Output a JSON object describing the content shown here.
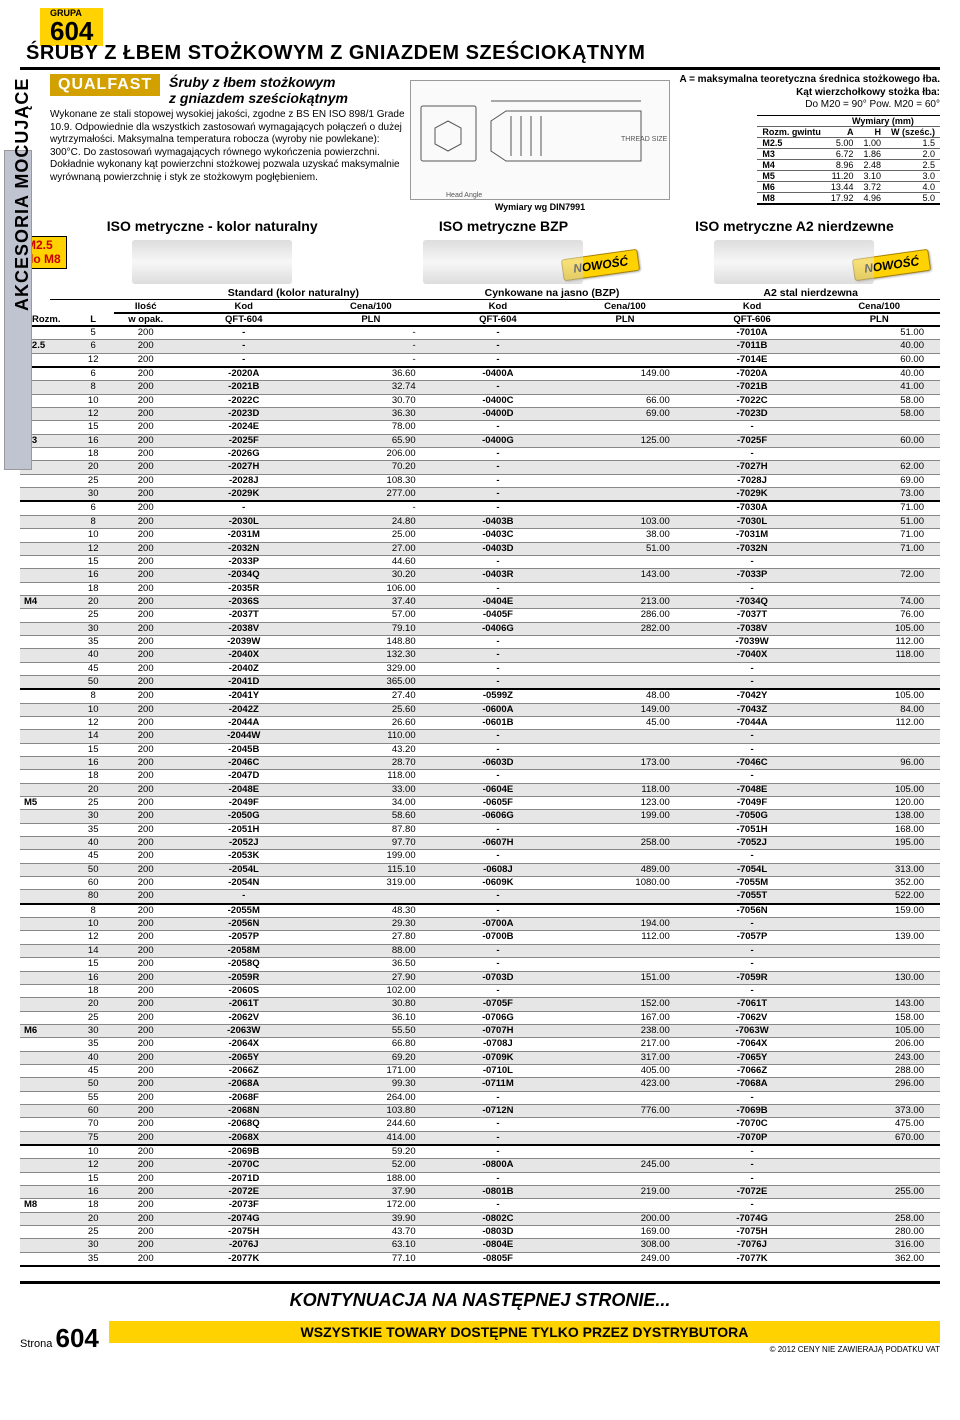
{
  "sidebar": "AKCESORIA MOCUJĄCE",
  "grupa_label": "GRUPA",
  "grupa_num": "604",
  "title": "ŚRUBY Z ŁBEM STOŻKOWYM Z GNIAZDEM SZEŚCIOKĄTNYM",
  "qualfast": "QUALFAST",
  "subtitle_l1": "Śruby z łbem stożkowym",
  "subtitle_l2": "z gniazdem sześciokątnym",
  "intro": "Wykonane ze stali stopowej wysokiej jakości, zgodne z BS EN ISO 898/1 Grade 10.9. Odpowiednie dla wszystkich zastosowań wymagających połączeń o dużej wytrzymałości. Maksymalna temperatura robocza (wyroby nie powlekane): 300°C. Do zastosowań wymagających równego wykończenia powierzchni. Dokładnie wykonany kąt powierzchni stożkowej pozwala uzyskać maksymalnie wyrównaną powierzchnię i styk ze stożkowym pogłębieniem.",
  "diagram_caption": "Wymiary wg DIN7991",
  "right_a": "A = maksymalna teoretyczna średnica stożkowego łba.",
  "right_b1": "Kąt wierzchołkowy stożka łba:",
  "right_b2": "Do M20 = 90° Pow. M20 = 60°",
  "dims": {
    "hdr": [
      "Rozm. gwintu",
      "A",
      "H",
      "W (sześc.)"
    ],
    "hdr_top": "Wymiary (mm)",
    "rows": [
      [
        "M2.5",
        "5.00",
        "1.00",
        "1.5"
      ],
      [
        "M3",
        "6.72",
        "1.86",
        "2.0"
      ],
      [
        "M4",
        "8.96",
        "2.48",
        "2.5"
      ],
      [
        "M5",
        "11.20",
        "3.10",
        "3.0"
      ],
      [
        "M6",
        "13.44",
        "3.72",
        "4.0"
      ],
      [
        "M8",
        "17.92",
        "4.96",
        "5.0"
      ]
    ]
  },
  "range_l1": "M2.5",
  "range_l2": "do M8",
  "col_titles": [
    "ISO metryczne - kolor naturalny",
    "ISO metryczne BZP",
    "ISO metryczne A2 nierdzewne"
  ],
  "nowosc": "NOWOŚĆ",
  "sub_heads": [
    "Standard (kolor naturalny)",
    "Cynkowane na jasno (BZP)",
    "A2 stal nierdzewna"
  ],
  "hdr": {
    "rozm": "Rozm.",
    "l": "L",
    "qty1": "Ilość",
    "qty2": "w opak.",
    "kod": "Kod",
    "qft604": "QFT-604",
    "qft606": "QFT-606",
    "cena1": "Cena/100",
    "cena2": "PLN"
  },
  "groups": [
    {
      "rozm": "M2.5",
      "rows": [
        {
          "l": "5",
          "q": "200",
          "c1": "-",
          "p1": "-",
          "c2": "-",
          "p2": "",
          "c3": "-7010A",
          "p3": "51.00"
        },
        {
          "l": "6",
          "q": "200",
          "c1": "-",
          "p1": "-",
          "c2": "-",
          "p2": "",
          "c3": "-7011B",
          "p3": "40.00"
        },
        {
          "l": "12",
          "q": "200",
          "c1": "-",
          "p1": "-",
          "c2": "-",
          "p2": "",
          "c3": "-7014E",
          "p3": "60.00"
        }
      ]
    },
    {
      "rozm": "M3",
      "rows": [
        {
          "l": "6",
          "q": "200",
          "c1": "-2020A",
          "p1": "36.60",
          "c2": "-0400A",
          "p2": "149.00",
          "c3": "-7020A",
          "p3": "40.00"
        },
        {
          "l": "8",
          "q": "200",
          "c1": "-2021B",
          "p1": "32.74",
          "c2": "-",
          "p2": "",
          "c3": "-7021B",
          "p3": "41.00"
        },
        {
          "l": "10",
          "q": "200",
          "c1": "-2022C",
          "p1": "30.70",
          "c2": "-0400C",
          "p2": "66.00",
          "c3": "-7022C",
          "p3": "58.00"
        },
        {
          "l": "12",
          "q": "200",
          "c1": "-2023D",
          "p1": "36.30",
          "c2": "-0400D",
          "p2": "69.00",
          "c3": "-7023D",
          "p3": "58.00"
        },
        {
          "l": "15",
          "q": "200",
          "c1": "-2024E",
          "p1": "78.00",
          "c2": "-",
          "p2": "",
          "c3": "-",
          "p3": ""
        },
        {
          "l": "16",
          "q": "200",
          "c1": "-2025F",
          "p1": "65.90",
          "c2": "-0400G",
          "p2": "125.00",
          "c3": "-7025F",
          "p3": "60.00"
        },
        {
          "l": "18",
          "q": "200",
          "c1": "-2026G",
          "p1": "206.00",
          "c2": "-",
          "p2": "",
          "c3": "-",
          "p3": ""
        },
        {
          "l": "20",
          "q": "200",
          "c1": "-2027H",
          "p1": "70.20",
          "c2": "-",
          "p2": "",
          "c3": "-7027H",
          "p3": "62.00"
        },
        {
          "l": "25",
          "q": "200",
          "c1": "-2028J",
          "p1": "108.30",
          "c2": "-",
          "p2": "",
          "c3": "-7028J",
          "p3": "69.00"
        },
        {
          "l": "30",
          "q": "200",
          "c1": "-2029K",
          "p1": "277.00",
          "c2": "-",
          "p2": "",
          "c3": "-7029K",
          "p3": "73.00"
        }
      ]
    },
    {
      "rozm": "M4",
      "rows": [
        {
          "l": "6",
          "q": "200",
          "c1": "-",
          "p1": "-",
          "c2": "-",
          "p2": "",
          "c3": "-7030A",
          "p3": "71.00"
        },
        {
          "l": "8",
          "q": "200",
          "c1": "-2030L",
          "p1": "24.80",
          "c2": "-0403B",
          "p2": "103.00",
          "c3": "-7030L",
          "p3": "51.00"
        },
        {
          "l": "10",
          "q": "200",
          "c1": "-2031M",
          "p1": "25.00",
          "c2": "-0403C",
          "p2": "38.00",
          "c3": "-7031M",
          "p3": "71.00"
        },
        {
          "l": "12",
          "q": "200",
          "c1": "-2032N",
          "p1": "27.00",
          "c2": "-0403D",
          "p2": "51.00",
          "c3": "-7032N",
          "p3": "71.00"
        },
        {
          "l": "15",
          "q": "200",
          "c1": "-2033P",
          "p1": "44.60",
          "c2": "-",
          "p2": "",
          "c3": "-",
          "p3": ""
        },
        {
          "l": "16",
          "q": "200",
          "c1": "-2034Q",
          "p1": "30.20",
          "c2": "-0403R",
          "p2": "143.00",
          "c3": "-7033P",
          "p3": "72.00"
        },
        {
          "l": "18",
          "q": "200",
          "c1": "-2035R",
          "p1": "106.00",
          "c2": "-",
          "p2": "",
          "c3": "-",
          "p3": ""
        },
        {
          "l": "20",
          "q": "200",
          "c1": "-2036S",
          "p1": "37.40",
          "c2": "-0404E",
          "p2": "213.00",
          "c3": "-7034Q",
          "p3": "74.00"
        },
        {
          "l": "25",
          "q": "200",
          "c1": "-2037T",
          "p1": "57.00",
          "c2": "-0405F",
          "p2": "286.00",
          "c3": "-7037T",
          "p3": "76.00"
        },
        {
          "l": "30",
          "q": "200",
          "c1": "-2038V",
          "p1": "79.10",
          "c2": "-0406G",
          "p2": "282.00",
          "c3": "-7038V",
          "p3": "105.00"
        },
        {
          "l": "35",
          "q": "200",
          "c1": "-2039W",
          "p1": "148.80",
          "c2": "-",
          "p2": "",
          "c3": "-7039W",
          "p3": "112.00"
        },
        {
          "l": "40",
          "q": "200",
          "c1": "-2040X",
          "p1": "132.30",
          "c2": "-",
          "p2": "",
          "c3": "-7040X",
          "p3": "118.00"
        },
        {
          "l": "45",
          "q": "200",
          "c1": "-2040Z",
          "p1": "329.00",
          "c2": "-",
          "p2": "",
          "c3": "-",
          "p3": ""
        },
        {
          "l": "50",
          "q": "200",
          "c1": "-2041D",
          "p1": "365.00",
          "c2": "-",
          "p2": "",
          "c3": "-",
          "p3": ""
        }
      ]
    },
    {
      "rozm": "M5",
      "rows": [
        {
          "l": "8",
          "q": "200",
          "c1": "-2041Y",
          "p1": "27.40",
          "c2": "-0599Z",
          "p2": "48.00",
          "c3": "-7042Y",
          "p3": "105.00"
        },
        {
          "l": "10",
          "q": "200",
          "c1": "-2042Z",
          "p1": "25.60",
          "c2": "-0600A",
          "p2": "149.00",
          "c3": "-7043Z",
          "p3": "84.00"
        },
        {
          "l": "12",
          "q": "200",
          "c1": "-2044A",
          "p1": "26.60",
          "c2": "-0601B",
          "p2": "45.00",
          "c3": "-7044A",
          "p3": "112.00"
        },
        {
          "l": "14",
          "q": "200",
          "c1": "-2044W",
          "p1": "110.00",
          "c2": "-",
          "p2": "",
          "c3": "-",
          "p3": ""
        },
        {
          "l": "15",
          "q": "200",
          "c1": "-2045B",
          "p1": "43.20",
          "c2": "-",
          "p2": "",
          "c3": "-",
          "p3": ""
        },
        {
          "l": "16",
          "q": "200",
          "c1": "-2046C",
          "p1": "28.70",
          "c2": "-0603D",
          "p2": "173.00",
          "c3": "-7046C",
          "p3": "96.00"
        },
        {
          "l": "18",
          "q": "200",
          "c1": "-2047D",
          "p1": "118.00",
          "c2": "-",
          "p2": "",
          "c3": "-",
          "p3": ""
        },
        {
          "l": "20",
          "q": "200",
          "c1": "-2048E",
          "p1": "33.00",
          "c2": "-0604E",
          "p2": "118.00",
          "c3": "-7048E",
          "p3": "105.00"
        },
        {
          "l": "25",
          "q": "200",
          "c1": "-2049F",
          "p1": "34.00",
          "c2": "-0605F",
          "p2": "123.00",
          "c3": "-7049F",
          "p3": "120.00"
        },
        {
          "l": "30",
          "q": "200",
          "c1": "-2050G",
          "p1": "58.60",
          "c2": "-0606G",
          "p2": "199.00",
          "c3": "-7050G",
          "p3": "138.00"
        },
        {
          "l": "35",
          "q": "200",
          "c1": "-2051H",
          "p1": "87.80",
          "c2": "-",
          "p2": "",
          "c3": "-7051H",
          "p3": "168.00"
        },
        {
          "l": "40",
          "q": "200",
          "c1": "-2052J",
          "p1": "97.70",
          "c2": "-0607H",
          "p2": "258.00",
          "c3": "-7052J",
          "p3": "195.00"
        },
        {
          "l": "45",
          "q": "200",
          "c1": "-2053K",
          "p1": "199.00",
          "c2": "-",
          "p2": "",
          "c3": "-",
          "p3": ""
        },
        {
          "l": "50",
          "q": "200",
          "c1": "-2054L",
          "p1": "115.10",
          "c2": "-0608J",
          "p2": "489.00",
          "c3": "-7054L",
          "p3": "313.00"
        },
        {
          "l": "60",
          "q": "200",
          "c1": "-2054N",
          "p1": "319.00",
          "c2": "-0609K",
          "p2": "1080.00",
          "c3": "-7055M",
          "p3": "352.00"
        },
        {
          "l": "80",
          "q": "200",
          "c1": "-",
          "p1": "",
          "c2": "-",
          "p2": "",
          "c3": "-7055T",
          "p3": "522.00"
        }
      ]
    },
    {
      "rozm": "M6",
      "rows": [
        {
          "l": "8",
          "q": "200",
          "c1": "-2055M",
          "p1": "48.30",
          "c2": "-",
          "p2": "",
          "c3": "-7056N",
          "p3": "159.00"
        },
        {
          "l": "10",
          "q": "200",
          "c1": "-2056N",
          "p1": "29.30",
          "c2": "-0700A",
          "p2": "194.00",
          "c3": "-",
          "p3": ""
        },
        {
          "l": "12",
          "q": "200",
          "c1": "-2057P",
          "p1": "27.80",
          "c2": "-0700B",
          "p2": "112.00",
          "c3": "-7057P",
          "p3": "139.00"
        },
        {
          "l": "14",
          "q": "200",
          "c1": "-2058M",
          "p1": "88.00",
          "c2": "-",
          "p2": "",
          "c3": "-",
          "p3": ""
        },
        {
          "l": "15",
          "q": "200",
          "c1": "-2058Q",
          "p1": "36.50",
          "c2": "-",
          "p2": "",
          "c3": "-",
          "p3": ""
        },
        {
          "l": "16",
          "q": "200",
          "c1": "-2059R",
          "p1": "27.90",
          "c2": "-0703D",
          "p2": "151.00",
          "c3": "-7059R",
          "p3": "130.00"
        },
        {
          "l": "18",
          "q": "200",
          "c1": "-2060S",
          "p1": "102.00",
          "c2": "-",
          "p2": "",
          "c3": "-",
          "p3": ""
        },
        {
          "l": "20",
          "q": "200",
          "c1": "-2061T",
          "p1": "30.80",
          "c2": "-0705F",
          "p2": "152.00",
          "c3": "-7061T",
          "p3": "143.00"
        },
        {
          "l": "25",
          "q": "200",
          "c1": "-2062V",
          "p1": "36.10",
          "c2": "-0706G",
          "p2": "167.00",
          "c3": "-7062V",
          "p3": "158.00"
        },
        {
          "l": "30",
          "q": "200",
          "c1": "-2063W",
          "p1": "55.50",
          "c2": "-0707H",
          "p2": "238.00",
          "c3": "-7063W",
          "p3": "105.00"
        },
        {
          "l": "35",
          "q": "200",
          "c1": "-2064X",
          "p1": "66.80",
          "c2": "-0708J",
          "p2": "217.00",
          "c3": "-7064X",
          "p3": "206.00"
        },
        {
          "l": "40",
          "q": "200",
          "c1": "-2065Y",
          "p1": "69.20",
          "c2": "-0709K",
          "p2": "317.00",
          "c3": "-7065Y",
          "p3": "243.00"
        },
        {
          "l": "45",
          "q": "200",
          "c1": "-2066Z",
          "p1": "171.00",
          "c2": "-0710L",
          "p2": "405.00",
          "c3": "-7066Z",
          "p3": "288.00"
        },
        {
          "l": "50",
          "q": "200",
          "c1": "-2068A",
          "p1": "99.30",
          "c2": "-0711M",
          "p2": "423.00",
          "c3": "-7068A",
          "p3": "296.00"
        },
        {
          "l": "55",
          "q": "200",
          "c1": "-2068F",
          "p1": "264.00",
          "c2": "-",
          "p2": "",
          "c3": "-",
          "p3": ""
        },
        {
          "l": "60",
          "q": "200",
          "c1": "-2068N",
          "p1": "103.80",
          "c2": "-0712N",
          "p2": "776.00",
          "c3": "-7069B",
          "p3": "373.00"
        },
        {
          "l": "70",
          "q": "200",
          "c1": "-2068Q",
          "p1": "244.60",
          "c2": "-",
          "p2": "",
          "c3": "-7070C",
          "p3": "475.00"
        },
        {
          "l": "75",
          "q": "200",
          "c1": "-2068X",
          "p1": "414.00",
          "c2": "-",
          "p2": "",
          "c3": "-7070P",
          "p3": "670.00"
        }
      ]
    },
    {
      "rozm": "M8",
      "rows": [
        {
          "l": "10",
          "q": "200",
          "c1": "-2069B",
          "p1": "59.20",
          "c2": "-",
          "p2": "",
          "c3": "-",
          "p3": ""
        },
        {
          "l": "12",
          "q": "200",
          "c1": "-2070C",
          "p1": "52.00",
          "c2": "-0800A",
          "p2": "245.00",
          "c3": "-",
          "p3": ""
        },
        {
          "l": "15",
          "q": "200",
          "c1": "-2071D",
          "p1": "188.00",
          "c2": "-",
          "p2": "",
          "c3": "-",
          "p3": ""
        },
        {
          "l": "16",
          "q": "200",
          "c1": "-2072E",
          "p1": "37.90",
          "c2": "-0801B",
          "p2": "219.00",
          "c3": "-7072E",
          "p3": "255.00"
        },
        {
          "l": "18",
          "q": "200",
          "c1": "-2073F",
          "p1": "172.00",
          "c2": "-",
          "p2": "",
          "c3": "-",
          "p3": ""
        },
        {
          "l": "20",
          "q": "200",
          "c1": "-2074G",
          "p1": "39.90",
          "c2": "-0802C",
          "p2": "200.00",
          "c3": "-7074G",
          "p3": "258.00"
        },
        {
          "l": "25",
          "q": "200",
          "c1": "-2075H",
          "p1": "43.70",
          "c2": "-0803D",
          "p2": "169.00",
          "c3": "-7075H",
          "p3": "280.00"
        },
        {
          "l": "30",
          "q": "200",
          "c1": "-2076J",
          "p1": "63.10",
          "c2": "-0804E",
          "p2": "308.00",
          "c3": "-7076J",
          "p3": "316.00"
        },
        {
          "l": "35",
          "q": "200",
          "c1": "-2077K",
          "p1": "77.10",
          "c2": "-0805F",
          "p2": "249.00",
          "c3": "-7077K",
          "p3": "362.00"
        }
      ]
    }
  ],
  "continued": "KONTYNUACJA NA NASTĘPNEJ STRONIE...",
  "footer_bar": "WSZYSTKIE TOWARY DOSTĘPNE TYLKO PRZEZ DYSTRYBUTORA",
  "footer_sub": "© 2012 CENY NIE ZAWIERAJĄ PODATKU VAT",
  "strona_label": "Strona",
  "strona_num": "604"
}
